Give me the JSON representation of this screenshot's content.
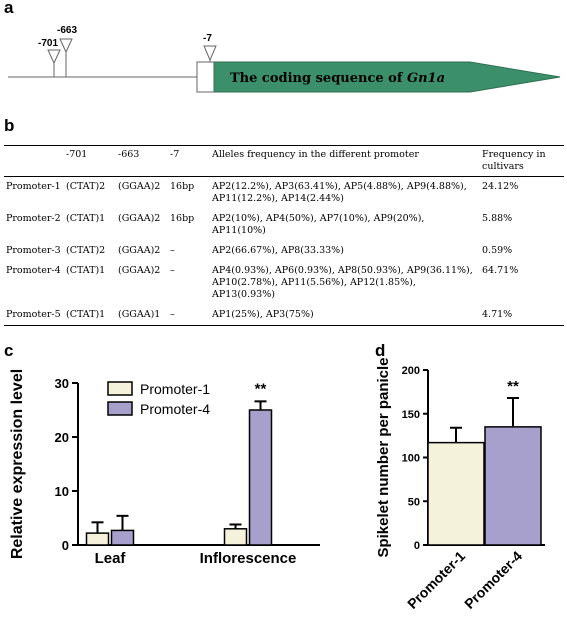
{
  "panels": {
    "a": {
      "letter": "a",
      "markers": [
        "-701",
        "-663",
        "-7"
      ],
      "gene_label_prefix": "The coding sequence of ",
      "gene_name": "Gn1a",
      "colors": {
        "gene_fill": "#3b8f6a",
        "line": "#666666"
      }
    },
    "b": {
      "letter": "b",
      "headers": [
        "",
        "-701",
        "-663",
        "-7",
        "Alleles frequency in the different promoter",
        "Frequency in cultivars"
      ],
      "rows": [
        {
          "name": "Promoter-1",
          "p701": "(CTAT)2",
          "p663": "(GGAA)2",
          "p7": "16bp",
          "alleles": "AP2(12.2%), AP3(63.41%), AP5(4.88%), AP9(4.88%), AP11(12.2%), AP14(2.44%)",
          "freq": "24.12%"
        },
        {
          "name": "Promoter-2",
          "p701": "(CTAT)1",
          "p663": "(GGAA)2",
          "p7": "16bp",
          "alleles": "AP2(10%), AP4(50%), AP7(10%), AP9(20%), AP11(10%)",
          "freq": "5.88%"
        },
        {
          "name": "Promoter-3",
          "p701": "(CTAT)2",
          "p663": "(GGAA)2",
          "p7": "–",
          "alleles": "AP2(66.67%), AP8(33.33%)",
          "freq": "0.59%"
        },
        {
          "name": "Promoter-4",
          "p701": "(CTAT)1",
          "p663": "(GGAA)2",
          "p7": "–",
          "alleles": "AP4(0.93%), AP6(0.93%), AP8(50.93%), AP9(36.11%), AP10(2.78%), AP11(5.56%), AP12(1.85%), AP13(0.93%)",
          "freq": "64.71%"
        },
        {
          "name": "Promoter-5",
          "p701": "(CTAT)1",
          "p663": "(GGAA)1",
          "p7": "–",
          "alleles": "AP1(25%), AP3(75%)",
          "freq": "4.71%"
        }
      ]
    },
    "c": {
      "letter": "c"
    },
    "d": {
      "letter": "d"
    }
  },
  "chart_data": [
    {
      "type": "bar",
      "categories": [
        "Leaf",
        "Inflorescence"
      ],
      "series": [
        {
          "name": "Promoter-1",
          "values": [
            2.2,
            3.0
          ],
          "errors": [
            2.0,
            0.8
          ],
          "color": "#f5f2dc"
        },
        {
          "name": "Promoter-4",
          "values": [
            2.7,
            25.0
          ],
          "errors": [
            2.7,
            1.6
          ],
          "color": "#a7a0cc"
        }
      ],
      "ylabel": "Relative expression level",
      "ylim": [
        0,
        30
      ],
      "yticks": [
        "0",
        "10",
        "20",
        "30"
      ],
      "legend": "top-left",
      "annotation": {
        "text": "**",
        "category": "Inflorescence",
        "series": "Promoter-4"
      }
    },
    {
      "type": "bar",
      "categories": [
        "Promoter-1",
        "Promoter-4"
      ],
      "values": [
        117,
        135
      ],
      "errors": [
        17,
        33
      ],
      "colors": [
        "#f5f2dc",
        "#a7a0cc"
      ],
      "ylabel": "Spikelet number per panicle",
      "ylim": [
        0,
        200
      ],
      "yticks": [
        "0",
        "50",
        "100",
        "150",
        "200"
      ],
      "annotation": {
        "text": "**",
        "category": "Promoter-4"
      }
    }
  ]
}
